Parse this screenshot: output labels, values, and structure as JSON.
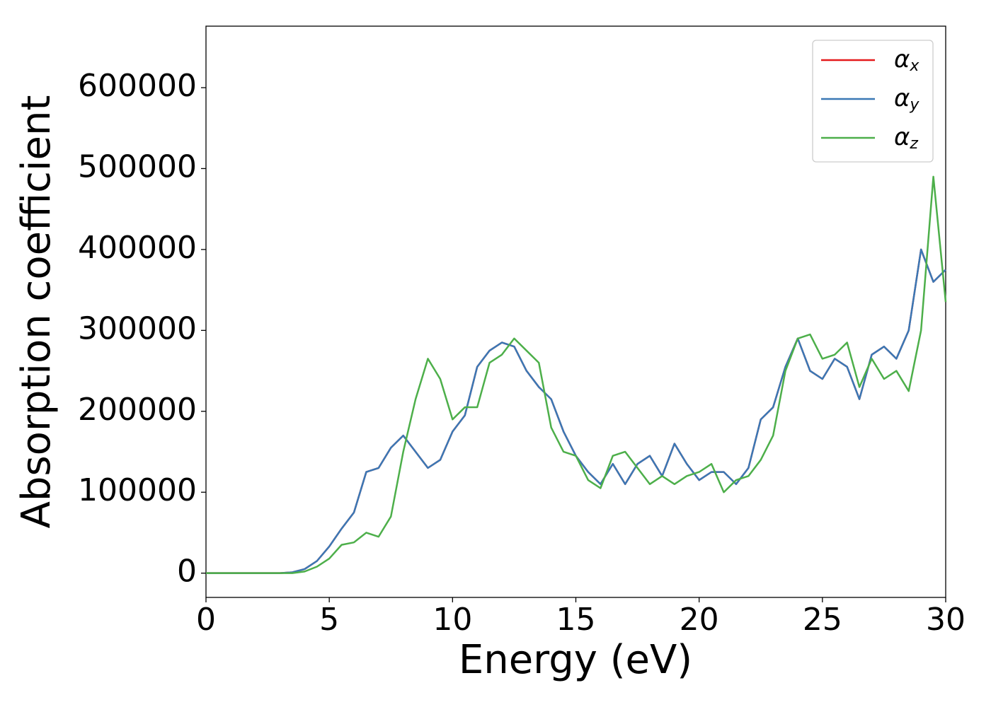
{
  "chart_data": {
    "type": "line",
    "xlabel": "Energy (eV)",
    "ylabel": "Absorption coefficient",
    "x": [
      0,
      0.5,
      1,
      1.5,
      2,
      2.5,
      3,
      3.5,
      4,
      4.5,
      5,
      5.5,
      6,
      6.5,
      7,
      7.5,
      8,
      8.5,
      9,
      9.5,
      10,
      10.5,
      11,
      11.5,
      12,
      12.5,
      13,
      13.5,
      14,
      14.5,
      15,
      15.5,
      16,
      16.5,
      17,
      17.5,
      18,
      18.5,
      19,
      19.5,
      20,
      20.5,
      21,
      21.5,
      22,
      22.5,
      23,
      23.5,
      24,
      24.5,
      25,
      25.5,
      26,
      26.5,
      27,
      27.5,
      28,
      28.5,
      29,
      29.5,
      30
    ],
    "series": [
      {
        "name": "αx",
        "color": "#e41a1c",
        "values": [
          0,
          0,
          0,
          0,
          0,
          0,
          0,
          1000,
          5000,
          15000,
          33000,
          55000,
          75000,
          125000,
          130000,
          155000,
          170000,
          150000,
          130000,
          140000,
          175000,
          195000,
          255000,
          275000,
          285000,
          280000,
          250000,
          230000,
          215000,
          175000,
          145000,
          125000,
          110000,
          135000,
          110000,
          135000,
          145000,
          120000,
          160000,
          135000,
          115000,
          125000,
          125000,
          110000,
          130000,
          190000,
          205000,
          255000,
          290000,
          250000,
          240000,
          265000,
          255000,
          215000,
          270000,
          280000,
          265000,
          300000,
          400000,
          360000,
          375000
        ]
      },
      {
        "name": "αy",
        "color": "#3a78b5",
        "values": [
          0,
          0,
          0,
          0,
          0,
          0,
          0,
          1000,
          5000,
          15000,
          33000,
          55000,
          75000,
          125000,
          130000,
          155000,
          170000,
          150000,
          130000,
          140000,
          175000,
          195000,
          255000,
          275000,
          285000,
          280000,
          250000,
          230000,
          215000,
          175000,
          145000,
          125000,
          110000,
          135000,
          110000,
          135000,
          145000,
          120000,
          160000,
          135000,
          115000,
          125000,
          125000,
          110000,
          130000,
          190000,
          205000,
          255000,
          290000,
          250000,
          240000,
          265000,
          255000,
          215000,
          270000,
          280000,
          265000,
          300000,
          400000,
          360000,
          375000
        ]
      },
      {
        "name": "αz",
        "color": "#4daf4a",
        "values": [
          0,
          0,
          0,
          0,
          0,
          0,
          0,
          0,
          2000,
          8000,
          18000,
          35000,
          38000,
          50000,
          45000,
          70000,
          150000,
          215000,
          265000,
          240000,
          190000,
          205000,
          205000,
          260000,
          270000,
          290000,
          275000,
          260000,
          180000,
          150000,
          145000,
          115000,
          105000,
          145000,
          150000,
          130000,
          110000,
          120000,
          110000,
          120000,
          125000,
          135000,
          100000,
          115000,
          120000,
          140000,
          170000,
          250000,
          290000,
          295000,
          265000,
          270000,
          285000,
          230000,
          265000,
          240000,
          250000,
          225000,
          300000,
          490000,
          335000
        ]
      }
    ],
    "xlim": [
      0,
      30
    ],
    "xticks": [
      0,
      5,
      10,
      15,
      20,
      25,
      30
    ],
    "ylim": [
      -30000,
      676000
    ],
    "yticks": [
      0,
      100000,
      200000,
      300000,
      400000,
      500000,
      600000
    ],
    "grid": false,
    "legend": "upper right"
  }
}
